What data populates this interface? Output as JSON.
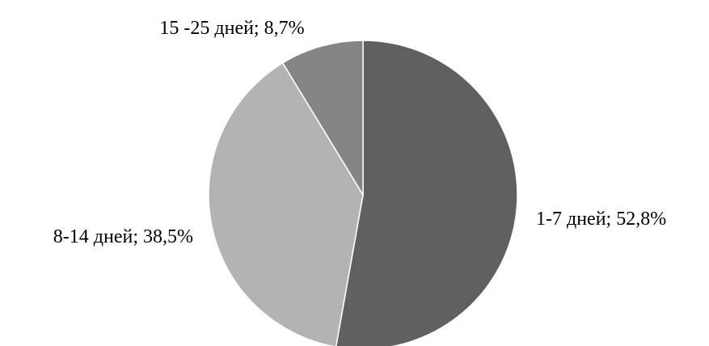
{
  "chart_data": {
    "type": "pie",
    "categories": [
      "1-7 дней",
      "8-14 дней",
      "15 -25 дней"
    ],
    "values": [
      52.8,
      38.5,
      8.7
    ],
    "data_labels": [
      "1-7 дней; 52,8%",
      "8-14 дней; 38,5%",
      "15 -25 дней; 8,7%"
    ],
    "colors": [
      "#606060",
      "#b3b3b3",
      "#858585"
    ],
    "start_angle_deg": 0,
    "direction": "clockwise",
    "legend": "none"
  }
}
